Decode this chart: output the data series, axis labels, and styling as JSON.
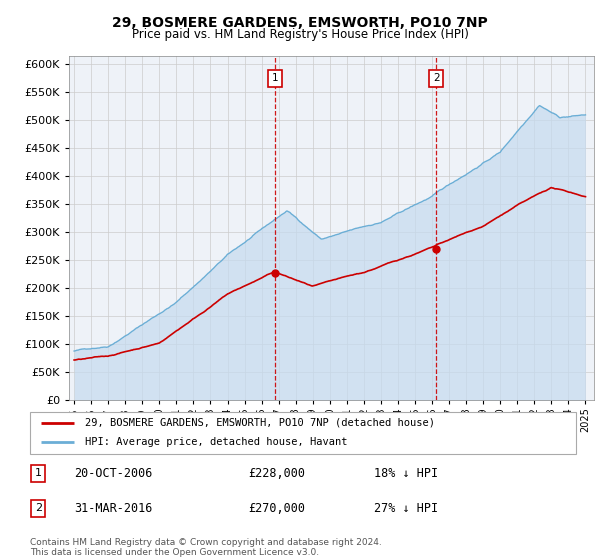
{
  "title": "29, BOSMERE GARDENS, EMSWORTH, PO10 7NP",
  "subtitle": "Price paid vs. HM Land Registry's House Price Index (HPI)",
  "ytick_vals": [
    0,
    50000,
    100000,
    150000,
    200000,
    250000,
    300000,
    350000,
    400000,
    450000,
    500000,
    550000,
    600000
  ],
  "ylim": [
    0,
    615000
  ],
  "x_start_year": 1995,
  "x_end_year": 2025,
  "marker1_date": 2006.8,
  "marker1_price": 228000,
  "marker2_date": 2016.25,
  "marker2_price": 270000,
  "hpi_color": "#6baed6",
  "hpi_fill_color": "#c6dbef",
  "price_color": "#cc0000",
  "marker_box_color": "#cc0000",
  "legend_label_price": "29, BOSMERE GARDENS, EMSWORTH, PO10 7NP (detached house)",
  "legend_label_hpi": "HPI: Average price, detached house, Havant",
  "footer": "Contains HM Land Registry data © Crown copyright and database right 2024.\nThis data is licensed under the Open Government Licence v3.0.",
  "background_color": "#ffffff",
  "plot_bg_color": "#eef2f8"
}
